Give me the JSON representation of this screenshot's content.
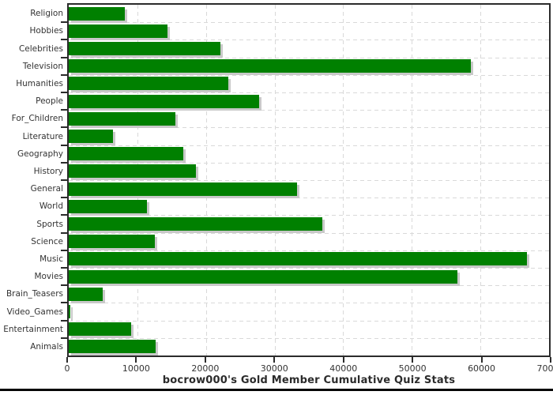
{
  "title": "bocrow000's Gold Member Cumulative Quiz Stats",
  "chart_data": {
    "type": "bar",
    "orientation": "horizontal",
    "title": "bocrow000's Gold Member Cumulative Quiz Stats",
    "xlabel": "",
    "ylabel": "",
    "xlim": [
      0,
      70000
    ],
    "x_ticks": [
      0,
      10000,
      20000,
      30000,
      40000,
      50000,
      60000,
      70000
    ],
    "grid": true,
    "legend": false,
    "categories": [
      "Religion",
      "Hobbies",
      "Celebrities",
      "Television",
      "Humanities",
      "People",
      "For_Children",
      "Literature",
      "Geography",
      "History",
      "General",
      "World",
      "Sports",
      "Science",
      "Music",
      "Movies",
      "Brain_Teasers",
      "Video_Games",
      "Entertainment",
      "Animals"
    ],
    "values": [
      8150,
      14350,
      22100,
      58550,
      23300,
      27800,
      15550,
      6500,
      16700,
      18500,
      33250,
      11350,
      36900,
      12600,
      66750,
      56650,
      4950,
      250,
      9100,
      12700
    ]
  },
  "colors": {
    "bar": "#008000",
    "bar_shadow": "#c9c9c9",
    "grid": "#d9d9d9",
    "plot_border": "#2b2b2b",
    "text": "#333333",
    "title_text": "#2b2b2b",
    "baseline_rule": "#050505"
  }
}
